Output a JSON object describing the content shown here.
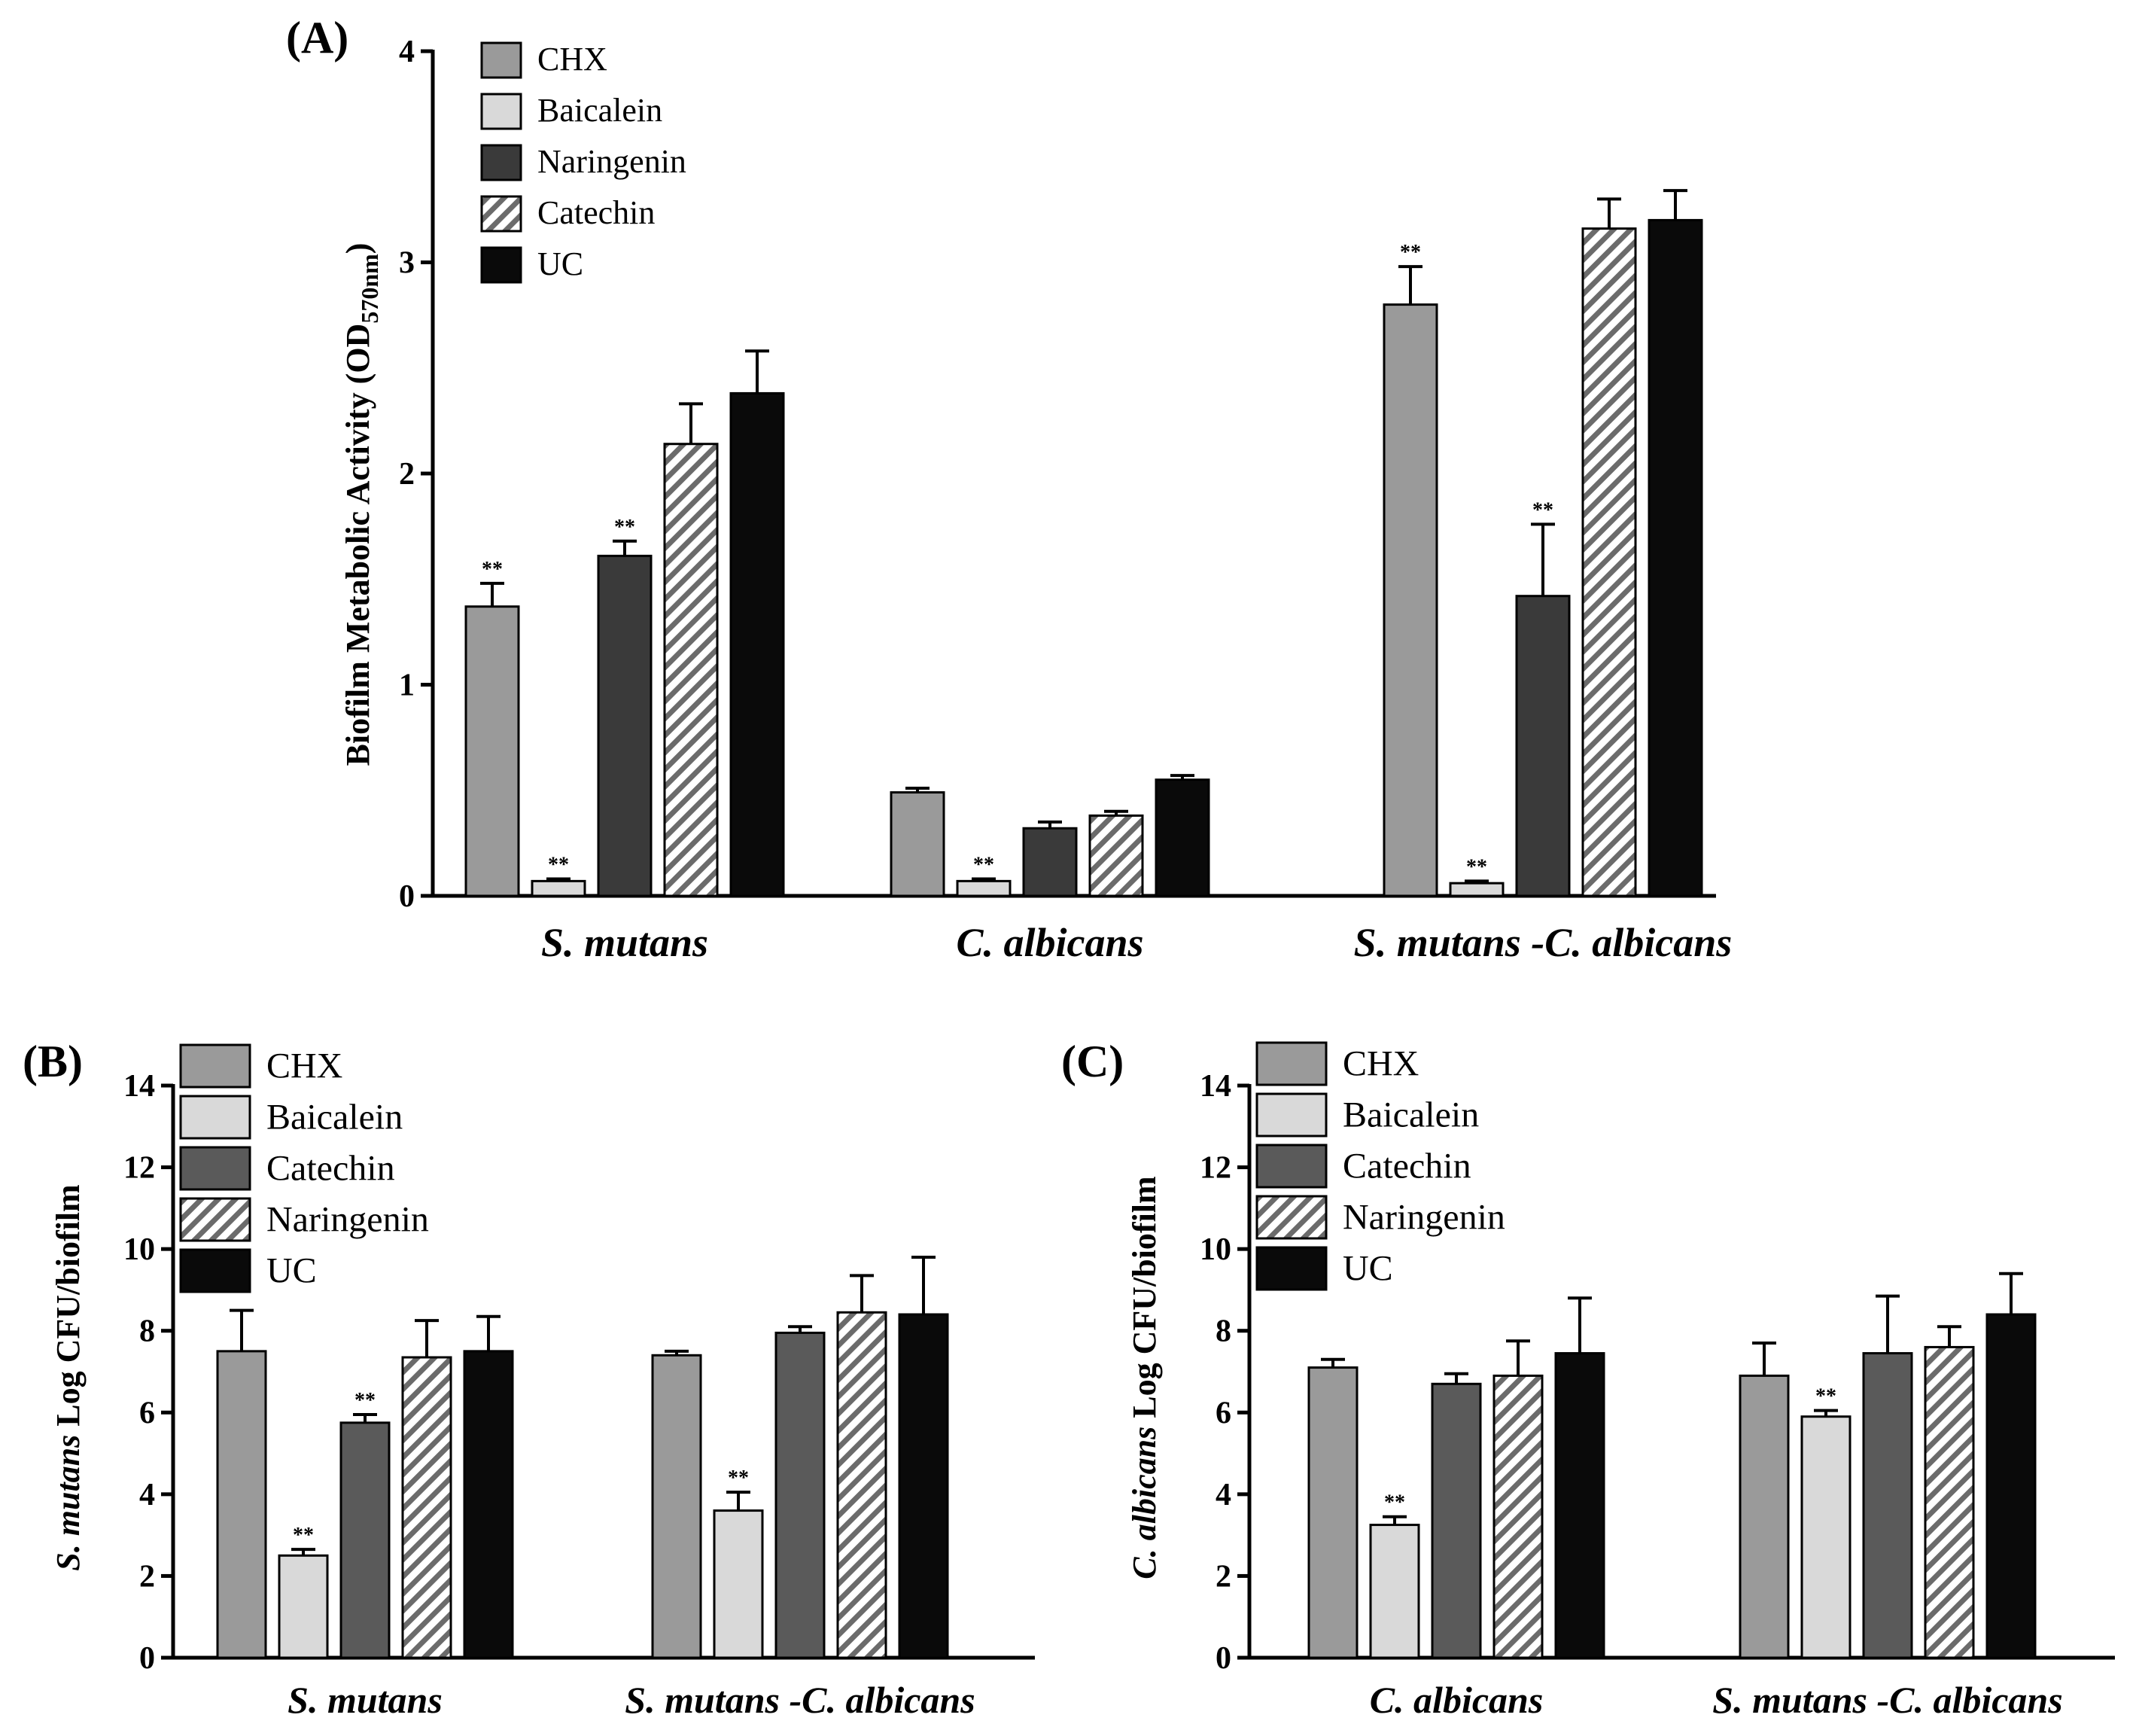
{
  "figure": {
    "styles": {
      "CHX": {
        "fill": "#9a9a9a",
        "pattern": false
      },
      "Baicalein": {
        "fill": "#d9d9d9",
        "pattern": false
      },
      "Naringenin": {
        "fill": "#3a3a3a",
        "pattern": false
      },
      "Catechin": {
        "fill": "#5a5a5a",
        "pattern": false
      },
      "UC": {
        "fill": "#0a0a0a",
        "pattern": false
      },
      "Hatched": {
        "fill": "#ffffff",
        "stroke": "#6b6b6b",
        "pattern": true
      }
    }
  },
  "chart_data": [
    {
      "type": "bar",
      "panel_label": "(A)",
      "ylabel": "Biofilm Metabolic Activity (OD",
      "ylabel_sub": "570nm",
      "ylabel_close": ")",
      "ylim": [
        0,
        4
      ],
      "yticks": [
        "0",
        "1",
        "2",
        "3",
        "4"
      ],
      "categories": [
        "S. mutans",
        "C. albicans",
        "S. mutans -C. albicans"
      ],
      "legend": [
        "CHX",
        "Baicalein",
        "Naringenin",
        "Catechin",
        "UC"
      ],
      "legend_styles": [
        "CHX",
        "Baicalein",
        "Naringenin",
        "Hatched",
        "UC"
      ],
      "series": [
        {
          "name": "CHX",
          "style": "CHX",
          "values": [
            1.37,
            0.49,
            2.8
          ],
          "errors": [
            0.11,
            0.02,
            0.18
          ],
          "sig": [
            "**",
            "",
            "**"
          ]
        },
        {
          "name": "Baicalein",
          "style": "Baicalein",
          "values": [
            0.07,
            0.07,
            0.06
          ],
          "errors": [
            0.01,
            0.01,
            0.01
          ],
          "sig": [
            "**",
            "**",
            "**"
          ]
        },
        {
          "name": "Naringenin",
          "style": "Naringenin",
          "values": [
            1.61,
            0.32,
            1.42
          ],
          "errors": [
            0.07,
            0.03,
            0.34
          ],
          "sig": [
            "**",
            "",
            "**"
          ]
        },
        {
          "name": "Catechin",
          "style": "Hatched",
          "values": [
            2.14,
            0.38,
            3.16
          ],
          "errors": [
            0.19,
            0.02,
            0.14
          ],
          "sig": [
            "",
            "",
            ""
          ]
        },
        {
          "name": "UC",
          "style": "UC",
          "values": [
            2.38,
            0.55,
            3.2
          ],
          "errors": [
            0.2,
            0.02,
            0.14
          ],
          "sig": [
            "",
            "",
            ""
          ]
        }
      ]
    },
    {
      "type": "bar",
      "panel_label": "(B)",
      "ylabel_italic": "S. mutans",
      "ylabel": " Log CFU/biofilm",
      "ylim": [
        0,
        14
      ],
      "yticks": [
        "0",
        "2",
        "4",
        "6",
        "8",
        "10",
        "12",
        "14"
      ],
      "categories": [
        "S. mutans",
        "S. mutans -C. albicans"
      ],
      "legend": [
        "CHX",
        "Baicalein",
        "Catechin",
        "Naringenin",
        "UC"
      ],
      "legend_styles": [
        "CHX",
        "Baicalein",
        "Catechin",
        "Hatched",
        "UC"
      ],
      "series": [
        {
          "name": "CHX",
          "style": "CHX",
          "values": [
            7.5,
            7.4
          ],
          "errors": [
            1.0,
            0.1
          ],
          "sig": [
            "",
            ""
          ]
        },
        {
          "name": "Baicalein",
          "style": "Baicalein",
          "values": [
            2.5,
            3.6
          ],
          "errors": [
            0.15,
            0.45
          ],
          "sig": [
            "**",
            "**"
          ]
        },
        {
          "name": "Catechin",
          "style": "Catechin",
          "values": [
            5.75,
            7.95
          ],
          "errors": [
            0.2,
            0.15
          ],
          "sig": [
            "**",
            ""
          ]
        },
        {
          "name": "Naringenin",
          "style": "Hatched",
          "values": [
            7.35,
            8.45
          ],
          "errors": [
            0.9,
            0.9
          ],
          "sig": [
            "",
            ""
          ]
        },
        {
          "name": "UC",
          "style": "UC",
          "values": [
            7.5,
            8.4
          ],
          "errors": [
            0.85,
            1.4
          ],
          "sig": [
            "",
            ""
          ]
        }
      ]
    },
    {
      "type": "bar",
      "panel_label": "(C)",
      "ylabel_italic": "C. albicans",
      "ylabel": " Log CFU/biofilm",
      "ylim": [
        0,
        14
      ],
      "yticks": [
        "0",
        "2",
        "4",
        "6",
        "8",
        "10",
        "12",
        "14"
      ],
      "categories": [
        "C. albicans",
        "S. mutans -C. albicans"
      ],
      "legend": [
        "CHX",
        "Baicalein",
        "Catechin",
        "Naringenin",
        "UC"
      ],
      "legend_styles": [
        "CHX",
        "Baicalein",
        "Catechin",
        "Hatched",
        "UC"
      ],
      "series": [
        {
          "name": "CHX",
          "style": "CHX",
          "values": [
            7.1,
            6.9
          ],
          "errors": [
            0.2,
            0.8
          ],
          "sig": [
            "",
            ""
          ]
        },
        {
          "name": "Baicalein",
          "style": "Baicalein",
          "values": [
            3.25,
            5.9
          ],
          "errors": [
            0.2,
            0.15
          ],
          "sig": [
            "**",
            "**"
          ]
        },
        {
          "name": "Catechin",
          "style": "Catechin",
          "values": [
            6.7,
            7.45
          ],
          "errors": [
            0.25,
            1.4
          ],
          "sig": [
            "",
            ""
          ]
        },
        {
          "name": "Naringenin",
          "style": "Hatched",
          "values": [
            6.9,
            7.6
          ],
          "errors": [
            0.85,
            0.5
          ],
          "sig": [
            "",
            ""
          ]
        },
        {
          "name": "UC",
          "style": "UC",
          "values": [
            7.45,
            8.4
          ],
          "errors": [
            1.35,
            1.0
          ],
          "sig": [
            "",
            ""
          ]
        }
      ]
    }
  ]
}
